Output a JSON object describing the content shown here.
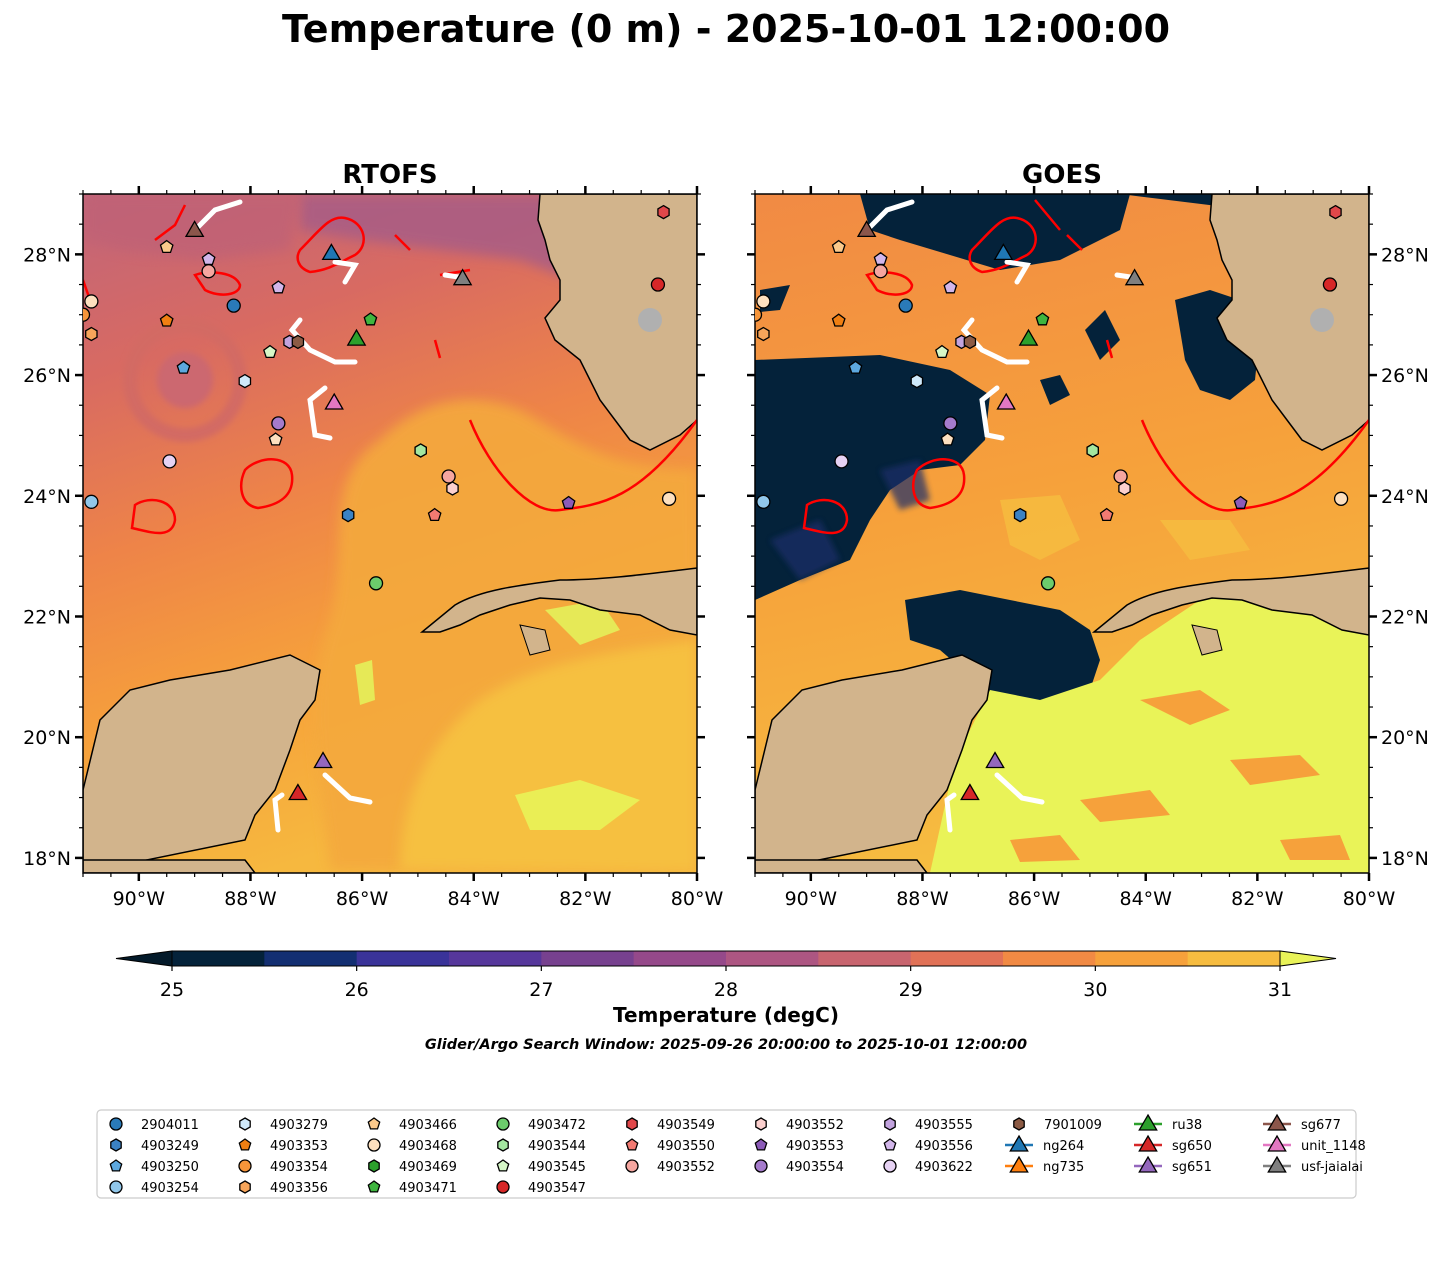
{
  "chart_data": {
    "type": "map",
    "title": "Temperature (0 m) - 2025-10-01 12:00:00",
    "panels": [
      {
        "title": "RTOFS"
      },
      {
        "title": "GOES"
      }
    ],
    "lon_range": [
      -91,
      -80
    ],
    "lat_range": [
      17.75,
      29
    ],
    "x_ticks": [
      {
        "value": -90,
        "label": "90°W"
      },
      {
        "value": -88,
        "label": "88°W"
      },
      {
        "value": -86,
        "label": "86°W"
      },
      {
        "value": -84,
        "label": "84°W"
      },
      {
        "value": -82,
        "label": "82°W"
      },
      {
        "value": -80,
        "label": "80°W"
      }
    ],
    "y_ticks": [
      {
        "value": 18,
        "label": "18°N"
      },
      {
        "value": 20,
        "label": "20°N"
      },
      {
        "value": 22,
        "label": "22°N"
      },
      {
        "value": 24,
        "label": "24°N"
      },
      {
        "value": 26,
        "label": "26°N"
      },
      {
        "value": 28,
        "label": "28°N"
      }
    ],
    "colorbar": {
      "label": "Temperature (degC)",
      "min": 25,
      "max": 31,
      "step": 0.5,
      "ticks": [
        "25",
        "26",
        "27",
        "28",
        "29",
        "30",
        "31"
      ],
      "colors": [
        "#04223a",
        "#132f72",
        "#3a3399",
        "#56379b",
        "#77418f",
        "#95498a",
        "#ad5682",
        "#c8656f",
        "#e17257",
        "#f18a44",
        "#f6a13b",
        "#f6bc40",
        "#e9f358"
      ],
      "under_color": "#031a2a",
      "over_color": "#e9f358"
    },
    "subtitle": "Glider/Argo Search Window: 2025-09-26 20:00:00 to 2025-10-01 12:00:00",
    "markers": [
      {
        "id": "2904011",
        "lon": -88.3,
        "lat": 27.15,
        "shape": "circle",
        "color": "#2a7ab8"
      },
      {
        "id": "4903249",
        "lon": -86.25,
        "lat": 23.68,
        "shape": "hexagon",
        "color": "#3b82c4"
      },
      {
        "id": "4903250",
        "lon": -89.2,
        "lat": 26.12,
        "shape": "pentagon",
        "color": "#5da8df"
      },
      {
        "id": "4903254",
        "lon": -90.85,
        "lat": 23.9,
        "shape": "circle",
        "color": "#91c7ea"
      },
      {
        "id": "4903279",
        "lon": -88.1,
        "lat": 25.9,
        "shape": "hexagon",
        "color": "#cfe9fa"
      },
      {
        "id": "4903353",
        "lon": -89.5,
        "lat": 26.9,
        "shape": "pentagon",
        "color": "#f07f12"
      },
      {
        "id": "4903354",
        "lon": -91.0,
        "lat": 27.0,
        "shape": "circle",
        "color": "#f6953a"
      },
      {
        "id": "4903356",
        "lon": -90.85,
        "lat": 26.68,
        "shape": "hexagon",
        "color": "#f7a55a"
      },
      {
        "id": "4903466",
        "lon": -89.5,
        "lat": 28.12,
        "shape": "pentagon",
        "color": "#fbc98b"
      },
      {
        "id": "4903468",
        "lon": -90.85,
        "lat": 27.22,
        "shape": "circle",
        "color": "#fde0bf"
      },
      {
        "id": "4903469",
        "lon": -84.95,
        "lat": 24.75,
        "shape": "hexagon",
        "color": "#2ca02c"
      },
      {
        "id": "4903471",
        "lon": -85.85,
        "lat": 26.92,
        "shape": "pentagon",
        "color": "#3fb53f"
      },
      {
        "id": "4903472",
        "lon": -85.75,
        "lat": 22.55,
        "shape": "circle",
        "color": "#6ccc6c"
      },
      {
        "id": "4903544",
        "lon": -84.95,
        "lat": 24.75,
        "shape": "hexagon",
        "color": "#a4e6a0"
      },
      {
        "id": "4903545",
        "lon": -87.65,
        "lat": 26.38,
        "shape": "pentagon",
        "color": "#d6f7c7"
      },
      {
        "id": "4903547",
        "lon": -80.7,
        "lat": 27.5,
        "shape": "circle",
        "color": "#d62728"
      },
      {
        "id": "4903549",
        "lon": -80.6,
        "lat": 28.7,
        "shape": "hexagon",
        "color": "#e0474a"
      },
      {
        "id": "4903550",
        "lon": -84.7,
        "lat": 23.68,
        "shape": "pentagon",
        "color": "#f27a72"
      },
      {
        "id": "4903552",
        "lon": -84.45,
        "lat": 24.32,
        "shape": "circle",
        "color": "#f5a6a0"
      },
      {
        "id": "4903552",
        "lon": -84.38,
        "lat": 24.12,
        "shape": "hexagon",
        "color": "#fcd0ce"
      },
      {
        "id": "4903553",
        "lon": -82.3,
        "lat": 23.88,
        "shape": "pentagon",
        "color": "#8c5bb8"
      },
      {
        "id": "4903554",
        "lon": -87.5,
        "lat": 25.2,
        "shape": "circle",
        "color": "#a57bcc"
      },
      {
        "id": "4903555",
        "lon": -87.3,
        "lat": 26.55,
        "shape": "hexagon",
        "color": "#c2a3de"
      },
      {
        "id": "4903556",
        "lon": -87.5,
        "lat": 27.45,
        "shape": "pentagon",
        "color": "#d2b6ea"
      },
      {
        "id": "4903556",
        "lon": -88.75,
        "lat": 27.92,
        "shape": "pentagon",
        "color": "#d2b6ea"
      },
      {
        "id": "4903622",
        "lon": -89.45,
        "lat": 24.57,
        "shape": "circle",
        "color": "#e6d2f3"
      },
      {
        "id": "4903556",
        "lon": -87.55,
        "lat": 24.93,
        "shape": "pentagon",
        "color": "#fde0bf"
      },
      {
        "id": "4903552",
        "lon": -80.5,
        "lat": 23.95,
        "shape": "circle",
        "color": "#fde0bf"
      },
      {
        "id": "4903552",
        "lon": -88.75,
        "lat": 27.72,
        "shape": "circle",
        "color": "#f5a6a0"
      },
      {
        "id": "7901009",
        "lon": -87.15,
        "lat": 26.55,
        "shape": "hexagon",
        "color": "#8c5b45"
      },
      {
        "id": "ru38",
        "lon": -86.1,
        "lat": 26.58,
        "shape": "triangle",
        "color": "#2ca02c"
      },
      {
        "id": "sg650",
        "lon": -87.15,
        "lat": 19.05,
        "shape": "triangle",
        "color": "#d62728"
      },
      {
        "id": "sg651",
        "lon": -86.7,
        "lat": 19.58,
        "shape": "triangle",
        "color": "#9467bd"
      },
      {
        "id": "sg677",
        "lon": -89.0,
        "lat": 28.38,
        "shape": "triangle",
        "color": "#8c564b"
      },
      {
        "id": "unit_1148",
        "lon": -86.5,
        "lat": 25.52,
        "shape": "triangle",
        "color": "#e377c2"
      },
      {
        "id": "ng264",
        "lon": -86.55,
        "lat": 28.0,
        "shape": "triangle",
        "color": "#1f77b4"
      },
      {
        "id": "usf-jaialai",
        "lon": -84.2,
        "lat": 27.58,
        "shape": "triangle",
        "color": "#7f7f7f"
      }
    ],
    "legend": [
      {
        "label": "2904011",
        "shape": "circle",
        "color": "#2a7ab8",
        "line": false
      },
      {
        "label": "4903249",
        "shape": "hexagon",
        "color": "#3b82c4",
        "line": false
      },
      {
        "label": "4903250",
        "shape": "pentagon",
        "color": "#5da8df",
        "line": false
      },
      {
        "label": "4903254",
        "shape": "circle",
        "color": "#91c7ea",
        "line": false
      },
      {
        "label": "4903279",
        "shape": "hexagon",
        "color": "#cfe9fa",
        "line": false
      },
      {
        "label": "4903353",
        "shape": "pentagon",
        "color": "#f07f12",
        "line": false
      },
      {
        "label": "4903354",
        "shape": "circle",
        "color": "#f6953a",
        "line": false
      },
      {
        "label": "4903356",
        "shape": "hexagon",
        "color": "#f7a55a",
        "line": false
      },
      {
        "label": "4903466",
        "shape": "pentagon",
        "color": "#fbc98b",
        "line": false
      },
      {
        "label": "4903468",
        "shape": "circle",
        "color": "#fde0bf",
        "line": false
      },
      {
        "label": "4903469",
        "shape": "hexagon",
        "color": "#2ca02c",
        "line": false
      },
      {
        "label": "4903471",
        "shape": "pentagon",
        "color": "#3fb53f",
        "line": false
      },
      {
        "label": "4903472",
        "shape": "circle",
        "color": "#6ccc6c",
        "line": false
      },
      {
        "label": "4903544",
        "shape": "hexagon",
        "color": "#a4e6a0",
        "line": false
      },
      {
        "label": "4903545",
        "shape": "pentagon",
        "color": "#d6f7c7",
        "line": false
      },
      {
        "label": "4903547",
        "shape": "circle",
        "color": "#d62728",
        "line": false
      },
      {
        "label": "4903549",
        "shape": "hexagon",
        "color": "#e0474a",
        "line": false
      },
      {
        "label": "4903550",
        "shape": "pentagon",
        "color": "#f27a72",
        "line": false
      },
      {
        "label": "4903552",
        "shape": "circle",
        "color": "#f5a6a0",
        "line": false
      },
      {
        "label": "4903552",
        "shape": "hexagon",
        "color": "#fcd0ce",
        "line": false
      },
      {
        "label": "4903553",
        "shape": "pentagon",
        "color": "#8c5bb8",
        "line": false
      },
      {
        "label": "4903554",
        "shape": "circle",
        "color": "#a57bcc",
        "line": false
      },
      {
        "label": "4903555",
        "shape": "hexagon",
        "color": "#c2a3de",
        "line": false
      },
      {
        "label": "4903556",
        "shape": "pentagon",
        "color": "#d2b6ea",
        "line": false
      },
      {
        "label": "4903622",
        "shape": "circle",
        "color": "#e6d2f3",
        "line": false
      },
      {
        "label": "7901009",
        "shape": "hexagon",
        "color": "#8c5b45",
        "line": false
      },
      {
        "label": "ng264",
        "shape": "triangle",
        "color": "#1f77b4",
        "line": true
      },
      {
        "label": "ng735",
        "shape": "triangle",
        "color": "#ff7f0e",
        "line": true
      },
      {
        "label": "ru38",
        "shape": "triangle",
        "color": "#2ca02c",
        "line": true
      },
      {
        "label": "sg650",
        "shape": "triangle",
        "color": "#d62728",
        "line": true
      },
      {
        "label": "sg651",
        "shape": "triangle",
        "color": "#9467bd",
        "line": true
      },
      {
        "label": "sg677",
        "shape": "triangle",
        "color": "#8c564b",
        "line": true
      },
      {
        "label": "unit_1148",
        "shape": "triangle",
        "color": "#e377c2",
        "line": true
      },
      {
        "label": "usf-jaialai",
        "shape": "triangle",
        "color": "#7f7f7f",
        "line": true
      }
    ],
    "land_color": "#d2b48c",
    "lake_color": "#a7c6e8",
    "contour_color": "#ff0000",
    "track_color": "#ffffff"
  }
}
